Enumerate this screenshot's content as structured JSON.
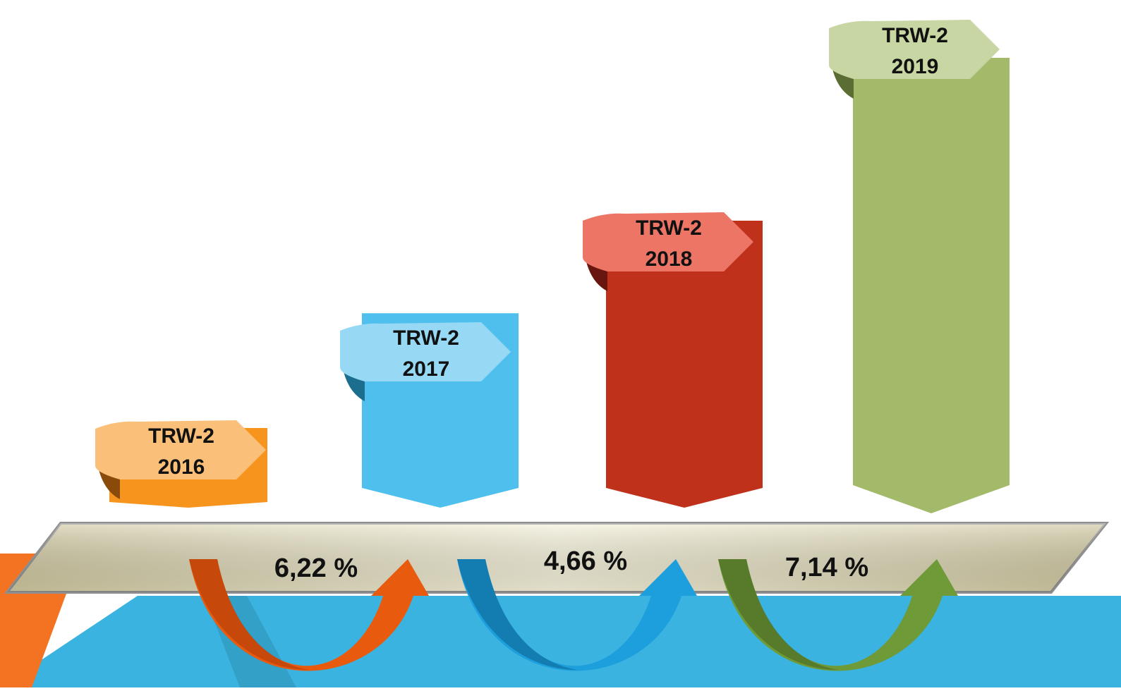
{
  "chart_data": {
    "type": "bar",
    "categories": [
      "2016",
      "2017",
      "2018",
      "2019"
    ],
    "bars": [
      {
        "label_line1": "TRW-2",
        "label_line2": "2016",
        "relative_height": 1.0,
        "color": "#F7941D",
        "ribbon": "#FAC07A",
        "ribbon_fold": "#8A4A0A"
      },
      {
        "label_line1": "TRW-2",
        "label_line2": "2017",
        "relative_height": 2.55,
        "color": "#4FC0EE",
        "ribbon": "#97D9F5",
        "ribbon_fold": "#1B6E8E"
      },
      {
        "label_line1": "TRW-2",
        "label_line2": "2018",
        "relative_height": 3.8,
        "color": "#C0311C",
        "ribbon": "#EC7566",
        "ribbon_fold": "#6A1610"
      },
      {
        "label_line1": "TRW-2",
        "label_line2": "2019",
        "relative_height": 6.0,
        "color": "#A3BA6A",
        "ribbon": "#C7D6A3",
        "ribbon_fold": "#5A6D32"
      }
    ],
    "growth": [
      {
        "text": "6,22 %",
        "color": "#E85A0E",
        "color_dark": "#B8400A"
      },
      {
        "text": "4,66 %",
        "color": "#1C9FDC",
        "color_dark": "#0F6FA0"
      },
      {
        "text": "7,14 %",
        "color": "#6E9A38",
        "color_dark": "#4E6E26"
      }
    ]
  },
  "background": {
    "band_color": "#3BB3E0",
    "corner_color": "#F47322",
    "platform_color": "#EDE8CE"
  }
}
